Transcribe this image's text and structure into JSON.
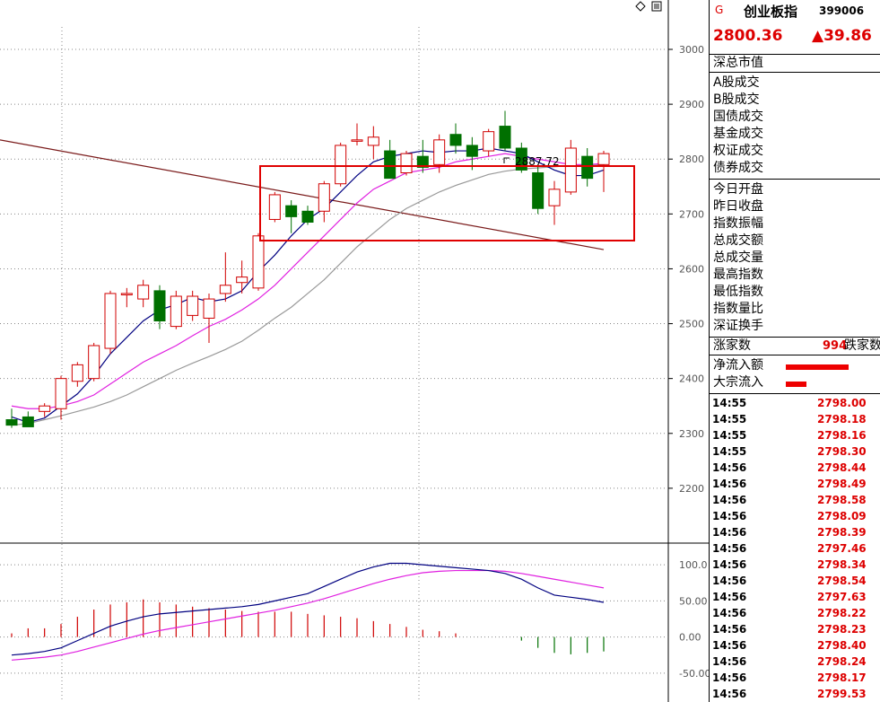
{
  "panel": {
    "flag": "G",
    "name": "创业板指",
    "code": "399006",
    "price": "2800.36",
    "change": "▲39.86",
    "market_cap_label": "深总市值",
    "volume_labels": [
      "A股成交",
      "B股成交",
      "国债成交",
      "基金成交",
      "权证成交",
      "债券成交"
    ],
    "index_labels": [
      "今日开盘",
      "昨日收盘",
      "指数振幅",
      "总成交额",
      "总成交量",
      "最高指数",
      "最低指数",
      "指数量比",
      "深证换手"
    ],
    "up_label": "涨家数",
    "up_value": "994",
    "down_label": "跌家数",
    "flow": [
      {
        "label": "净流入额",
        "fraction": 0.9
      },
      {
        "label": "大宗流入",
        "fraction": 0.3
      }
    ],
    "ticks": [
      {
        "time": "14:55",
        "price": "2798.00"
      },
      {
        "time": "14:55",
        "price": "2798.18"
      },
      {
        "time": "14:55",
        "price": "2798.16"
      },
      {
        "time": "14:55",
        "price": "2798.30"
      },
      {
        "time": "14:56",
        "price": "2798.44"
      },
      {
        "time": "14:56",
        "price": "2798.49"
      },
      {
        "time": "14:56",
        "price": "2798.58"
      },
      {
        "time": "14:56",
        "price": "2798.09"
      },
      {
        "time": "14:56",
        "price": "2798.39"
      },
      {
        "time": "14:56",
        "price": "2797.46"
      },
      {
        "time": "14:56",
        "price": "2798.34"
      },
      {
        "time": "14:56",
        "price": "2798.54"
      },
      {
        "time": "14:56",
        "price": "2797.63"
      },
      {
        "time": "14:56",
        "price": "2798.22"
      },
      {
        "time": "14:56",
        "price": "2798.23"
      },
      {
        "time": "14:56",
        "price": "2798.40"
      },
      {
        "time": "14:56",
        "price": "2798.24"
      },
      {
        "time": "14:56",
        "price": "2798.17"
      },
      {
        "time": "14:56",
        "price": "2799.53"
      }
    ]
  },
  "chart_data": {
    "type": "candlestick",
    "price_axis": {
      "ylim": [
        2100,
        3090
      ],
      "ticks": [
        2200,
        2300,
        2400,
        2500,
        2600,
        2700,
        2800,
        2900,
        3000
      ]
    },
    "indicator_axis": {
      "ylim": [
        -90,
        130
      ],
      "ticks": [
        "100.0",
        "50.00",
        "0.00",
        "-50.00"
      ]
    },
    "high_annotation": "2887.72",
    "colors": {
      "up": "#d00000",
      "down": "#007000",
      "grid": "#888888",
      "highlight": "#e00000"
    },
    "candles": [
      {
        "o": 2325,
        "h": 2345,
        "l": 2310,
        "c": 2315
      },
      {
        "o": 2330,
        "h": 2340,
        "l": 2315,
        "c": 2312
      },
      {
        "o": 2340,
        "h": 2355,
        "l": 2330,
        "c": 2350
      },
      {
        "o": 2345,
        "h": 2405,
        "l": 2325,
        "c": 2400
      },
      {
        "o": 2395,
        "h": 2430,
        "l": 2385,
        "c": 2425
      },
      {
        "o": 2400,
        "h": 2465,
        "l": 2395,
        "c": 2460
      },
      {
        "o": 2455,
        "h": 2560,
        "l": 2445,
        "c": 2555
      },
      {
        "o": 2555,
        "h": 2565,
        "l": 2530,
        "c": 2555
      },
      {
        "o": 2545,
        "h": 2580,
        "l": 2530,
        "c": 2570
      },
      {
        "o": 2560,
        "h": 2570,
        "l": 2490,
        "c": 2505
      },
      {
        "o": 2495,
        "h": 2560,
        "l": 2490,
        "c": 2550
      },
      {
        "o": 2515,
        "h": 2560,
        "l": 2505,
        "c": 2550
      },
      {
        "o": 2510,
        "h": 2555,
        "l": 2465,
        "c": 2545
      },
      {
        "o": 2555,
        "h": 2630,
        "l": 2540,
        "c": 2570
      },
      {
        "o": 2575,
        "h": 2615,
        "l": 2555,
        "c": 2585
      },
      {
        "o": 2565,
        "h": 2665,
        "l": 2560,
        "c": 2660
      },
      {
        "o": 2690,
        "h": 2740,
        "l": 2685,
        "c": 2735
      },
      {
        "o": 2715,
        "h": 2725,
        "l": 2665,
        "c": 2695
      },
      {
        "o": 2705,
        "h": 2715,
        "l": 2680,
        "c": 2685
      },
      {
        "o": 2705,
        "h": 2760,
        "l": 2685,
        "c": 2755
      },
      {
        "o": 2755,
        "h": 2830,
        "l": 2750,
        "c": 2825
      },
      {
        "o": 2835,
        "h": 2865,
        "l": 2825,
        "c": 2835
      },
      {
        "o": 2825,
        "h": 2860,
        "l": 2800,
        "c": 2840
      },
      {
        "o": 2815,
        "h": 2835,
        "l": 2765,
        "c": 2765
      },
      {
        "o": 2775,
        "h": 2815,
        "l": 2770,
        "c": 2810
      },
      {
        "o": 2805,
        "h": 2835,
        "l": 2775,
        "c": 2785
      },
      {
        "o": 2790,
        "h": 2845,
        "l": 2775,
        "c": 2835
      },
      {
        "o": 2845,
        "h": 2865,
        "l": 2810,
        "c": 2825
      },
      {
        "o": 2825,
        "h": 2840,
        "l": 2780,
        "c": 2805
      },
      {
        "o": 2815,
        "h": 2855,
        "l": 2805,
        "c": 2850
      },
      {
        "o": 2860,
        "h": 2888,
        "l": 2815,
        "c": 2820
      },
      {
        "o": 2820,
        "h": 2830,
        "l": 2775,
        "c": 2780
      },
      {
        "o": 2775,
        "h": 2790,
        "l": 2700,
        "c": 2710
      },
      {
        "o": 2715,
        "h": 2760,
        "l": 2680,
        "c": 2745
      },
      {
        "o": 2740,
        "h": 2835,
        "l": 2735,
        "c": 2820
      },
      {
        "o": 2805,
        "h": 2820,
        "l": 2750,
        "c": 2765
      },
      {
        "o": 2790,
        "h": 2815,
        "l": 2740,
        "c": 2810
      }
    ],
    "ma5": [
      2330,
      2320,
      2328,
      2350,
      2372,
      2405,
      2445,
      2475,
      2505,
      2525,
      2535,
      2548,
      2540,
      2545,
      2560,
      2595,
      2625,
      2660,
      2690,
      2710,
      2740,
      2770,
      2795,
      2805,
      2810,
      2815,
      2812,
      2815,
      2815,
      2820,
      2815,
      2810,
      2795,
      2780,
      2770,
      2770,
      2780
    ],
    "ma10": [
      2350,
      2345,
      2345,
      2350,
      2358,
      2370,
      2390,
      2410,
      2430,
      2445,
      2460,
      2478,
      2495,
      2508,
      2525,
      2545,
      2570,
      2600,
      2630,
      2660,
      2690,
      2720,
      2745,
      2760,
      2775,
      2780,
      2785,
      2795,
      2800,
      2805,
      2810,
      2805,
      2800,
      2795,
      2790,
      2790,
      2792
    ],
    "ma30": [
      2315,
      2318,
      2325,
      2332,
      2340,
      2348,
      2358,
      2370,
      2385,
      2400,
      2415,
      2428,
      2440,
      2453,
      2468,
      2488,
      2510,
      2530,
      2555,
      2580,
      2610,
      2640,
      2665,
      2690,
      2710,
      2725,
      2740,
      2752,
      2762,
      2772,
      2778,
      2782,
      2784,
      2786,
      2788,
      2789,
      2790
    ],
    "ma_long": {
      "start": 2835,
      "end": 2635
    },
    "macd_hist": [
      5,
      12,
      12,
      18,
      28,
      38,
      45,
      48,
      52,
      48,
      45,
      42,
      40,
      38,
      36,
      35,
      35,
      35,
      32,
      30,
      28,
      26,
      22,
      18,
      14,
      10,
      8,
      5,
      0,
      0,
      0,
      -5,
      -15,
      -22,
      -24,
      -22,
      -20
    ],
    "macd_dif": [
      -25,
      -23,
      -20,
      -15,
      -5,
      5,
      15,
      22,
      28,
      32,
      34,
      36,
      38,
      40,
      42,
      45,
      50,
      55,
      60,
      70,
      80,
      90,
      97,
      102,
      102,
      100,
      98,
      96,
      94,
      92,
      88,
      80,
      68,
      58,
      55,
      52,
      48
    ],
    "macd_dea": [
      -32,
      -30,
      -28,
      -25,
      -20,
      -14,
      -8,
      -2,
      4,
      9,
      13,
      17,
      21,
      25,
      29,
      33,
      37,
      42,
      47,
      53,
      60,
      67,
      74,
      80,
      85,
      89,
      91,
      92,
      92,
      92,
      91,
      88,
      84,
      80,
      76,
      72,
      68
    ]
  }
}
